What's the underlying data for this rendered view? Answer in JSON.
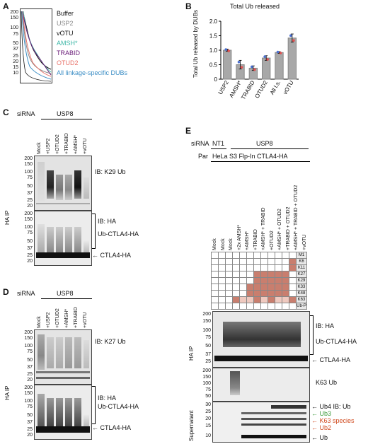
{
  "panelA": {
    "letter": "A",
    "mw": [
      "200",
      "150",
      "100",
      "75",
      "50",
      "37",
      "25",
      "20",
      "15",
      "10"
    ],
    "legend": [
      {
        "label": "Buffer",
        "color": "#111111"
      },
      {
        "label": "USP2",
        "color": "#888888"
      },
      {
        "label": "vOTU",
        "color": "#111111"
      },
      {
        "label": "AMSH*",
        "color": "#3fb8a8"
      },
      {
        "label": "TRABID",
        "color": "#6b1e7a"
      },
      {
        "label": "OTUD2",
        "color": "#e8736a"
      },
      {
        "label": "All linkage-specific DUBs",
        "color": "#3d8fc6"
      }
    ]
  },
  "panelB": {
    "letter": "B",
    "chart_data": {
      "type": "bar",
      "title": "Total Ub released",
      "ylabel": "Total Ub released by DUBs",
      "categories": [
        "USP2",
        "AMSH*",
        "TRABID",
        "OTUD2",
        "All l.s.",
        "vOTU"
      ],
      "values": [
        1.0,
        0.5,
        0.38,
        0.73,
        0.92,
        1.42
      ],
      "errors": [
        0.04,
        0.15,
        0.08,
        0.08,
        0.03,
        0.14
      ],
      "ylim": [
        0,
        2.0
      ],
      "yticks": [
        "0",
        "0.5",
        "1.0",
        "1.5",
        "2.0"
      ],
      "grid": false
    }
  },
  "panelC": {
    "letter": "C",
    "sirna": "siRNA",
    "usp8": "USP8",
    "lanes": [
      "Mock",
      "+USP2",
      "+OTUD2",
      "+TRABID",
      "+AMSH*",
      "+vOTU"
    ],
    "mw_top": [
      "200",
      "150",
      "100",
      "75",
      "50",
      "37",
      "25",
      "20"
    ],
    "mw_bottom": [
      "200",
      "150",
      "100",
      "75",
      "50",
      "37",
      "25",
      "20"
    ],
    "ib_top": "IB: K29 Ub",
    "ib_bottom": "IB: HA",
    "ub_ctla": "Ub-CTLA4-HA",
    "ctla": "CTLA4-HA",
    "ip": "HA IP"
  },
  "panelD": {
    "letter": "D",
    "sirna": "siRNA",
    "usp8": "USP8",
    "lanes": [
      "Mock",
      "+USP2",
      "+OTUD2",
      "+AMSH*",
      "+TRABID",
      "+vOTU"
    ],
    "mw_top": [
      "200",
      "150",
      "100",
      "75",
      "50",
      "37",
      "25",
      "20"
    ],
    "mw_bottom": [
      "200",
      "150",
      "100",
      "75",
      "50",
      "37",
      "25",
      "20"
    ],
    "ib_top": "IB: K27 Ub",
    "ib_bottom": "IB: HA",
    "ub_ctla": "Ub-CTLA4-HA",
    "ctla": "CTLA4-HA",
    "ip": "HA IP"
  },
  "panelE": {
    "letter": "E",
    "sirna": "siRNA",
    "nt1": "NT1",
    "usp8": "USP8",
    "par": "Par",
    "cellline": "HeLa S3 Flp-In CTLA4-HA",
    "lanes": [
      "Mock",
      "Mock",
      "Mock",
      "+2x AMSH*",
      "+AMSH*",
      "+TRABID",
      "+AMSH* + TRABID",
      "+OTUD2",
      "+AMSH* + OTUD2",
      "+TRABID + OTUD2",
      "+AMSH* + TRABID + OTUD2",
      "+vOTU"
    ],
    "linkages": [
      "M1",
      "K6",
      "K11",
      "K27",
      "K29",
      "K33",
      "K48",
      "K63",
      "Ub-P"
    ],
    "mw_ha": [
      "200",
      "150",
      "100",
      "75",
      "50",
      "37",
      "25"
    ],
    "mw_k63": [
      "200",
      "150",
      "100",
      "75",
      "50"
    ],
    "mw_sup": [
      "30",
      "25",
      "20",
      "15",
      "10"
    ],
    "ib_ha": "IB: HA",
    "ub_ctla": "Ub-CTLA4-HA",
    "ctla": "CTLA4-HA",
    "k63": "K63 Ub",
    "ip": "HA IP",
    "sup": "Supernatant",
    "ub4": "Ub4",
    "ib_ub": "IB: Ub",
    "ub3": "Ub3",
    "k63species": "K63 species",
    "ub2": "Ub2",
    "ub": "Ub",
    "ub3_color": "#3a9a3a",
    "k63_color": "#d04a1e",
    "cell_dark": "#c97e6e",
    "cell_light": "#efc9bf"
  }
}
